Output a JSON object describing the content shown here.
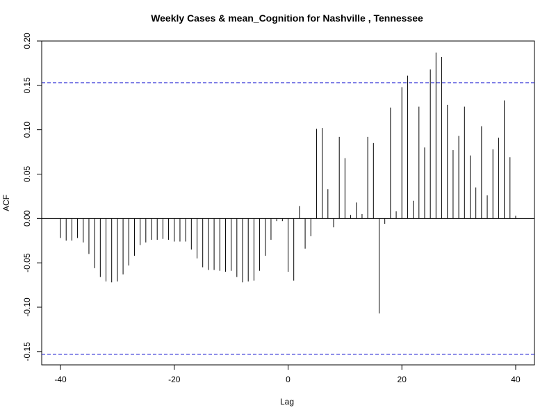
{
  "chart_data": {
    "type": "bar",
    "title": "Weekly Cases & mean_Cognition for Nashville , Tennessee",
    "xlabel": "Lag",
    "ylabel": "ACF",
    "xlim": [
      -43.3,
      43.3
    ],
    "ylim": [
      -0.165,
      0.2
    ],
    "x_ticks": [
      -40,
      -20,
      0,
      20,
      40
    ],
    "y_ticks": [
      -0.15,
      -0.1,
      -0.05,
      0.0,
      0.05,
      0.1,
      0.15,
      0.2
    ],
    "y_tick_labels": [
      "-0.15",
      "-0.10",
      "-0.05",
      "0.00",
      "0.05",
      "0.10",
      "0.15",
      "0.20"
    ],
    "grid": false,
    "confidence_bound": 0.153,
    "colors": {
      "bars": "#000000",
      "confidence": "#0000cc",
      "zero_line": "#000000"
    },
    "lags": [
      -40,
      -39,
      -38,
      -37,
      -36,
      -35,
      -34,
      -33,
      -32,
      -31,
      -30,
      -29,
      -28,
      -27,
      -26,
      -25,
      -24,
      -23,
      -22,
      -21,
      -20,
      -19,
      -18,
      -17,
      -16,
      -15,
      -14,
      -13,
      -12,
      -11,
      -10,
      -9,
      -8,
      -7,
      -6,
      -5,
      -4,
      -3,
      -2,
      -1,
      0,
      1,
      2,
      3,
      4,
      5,
      6,
      7,
      8,
      9,
      10,
      11,
      12,
      13,
      14,
      15,
      16,
      17,
      18,
      19,
      20,
      21,
      22,
      23,
      24,
      25,
      26,
      27,
      28,
      29,
      30,
      31,
      32,
      33,
      34,
      35,
      36,
      37,
      38,
      39,
      40
    ],
    "values": [
      -0.022,
      -0.025,
      -0.025,
      -0.022,
      -0.027,
      -0.04,
      -0.056,
      -0.066,
      -0.071,
      -0.072,
      -0.071,
      -0.063,
      -0.053,
      -0.042,
      -0.03,
      -0.027,
      -0.024,
      -0.024,
      -0.023,
      -0.024,
      -0.026,
      -0.026,
      -0.026,
      -0.035,
      -0.045,
      -0.055,
      -0.058,
      -0.058,
      -0.059,
      -0.06,
      -0.059,
      -0.066,
      -0.072,
      -0.071,
      -0.07,
      -0.059,
      -0.042,
      -0.024,
      -0.003,
      -0.003,
      -0.06,
      -0.07,
      0.014,
      -0.034,
      -0.02,
      0.101,
      0.102,
      0.033,
      -0.01,
      0.092,
      0.068,
      0.004,
      0.018,
      0.005,
      0.092,
      0.085,
      -0.107,
      -0.006,
      0.125,
      0.008,
      0.148,
      0.161,
      0.02,
      0.126,
      0.08,
      0.168,
      0.187,
      0.182,
      0.128,
      0.077,
      0.093,
      0.126,
      0.071,
      0.035,
      0.104,
      0.026,
      0.078,
      0.091,
      0.133,
      0.069,
      0.003
    ]
  }
}
